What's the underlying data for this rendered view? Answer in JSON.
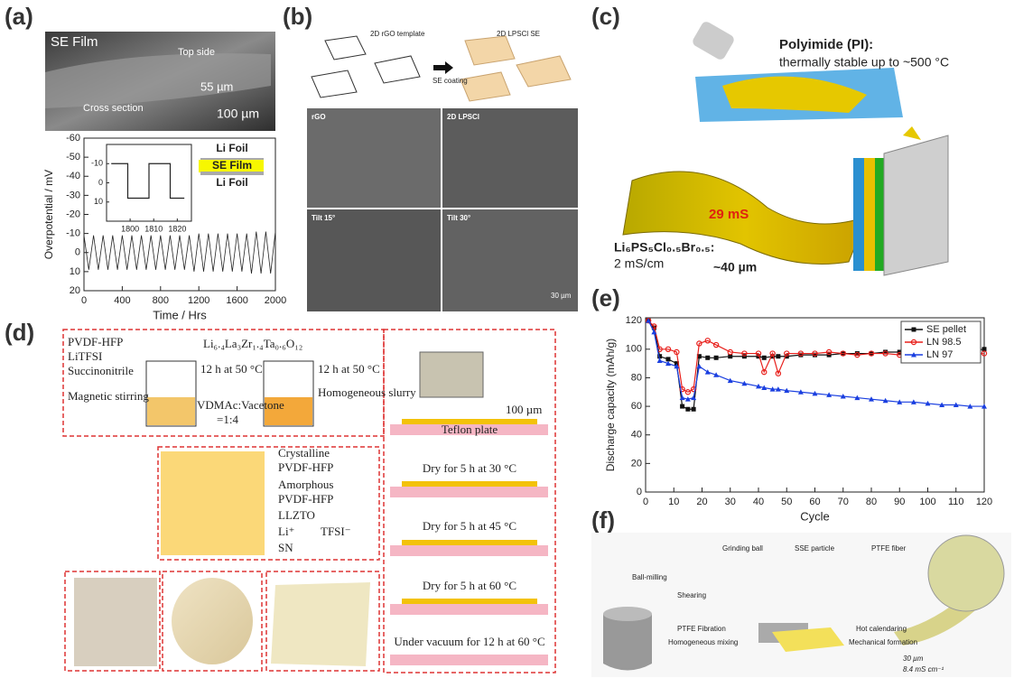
{
  "panels": {
    "labels": [
      "(a)",
      "(b)",
      "(c)",
      "(d)",
      "(e)",
      "(f)"
    ],
    "a": {
      "image_title": "SE Film",
      "top_side": "Top side",
      "thickness": "55 µm",
      "cross_section": "Cross section",
      "scale": "100 µm",
      "stack": [
        "Li Foil",
        "SE Film",
        "Li Foil"
      ]
    },
    "b": {
      "template": "2D rGO template",
      "se": "2D LPSCl SE",
      "coating": "SE coating",
      "tiles": [
        "rGO",
        "2D LPSCl",
        "Tilt 15°",
        "Tilt 30°"
      ],
      "scale": "30 µm"
    },
    "c": {
      "pi_title": "Polyimide (PI):",
      "pi_note": "thermally stable up to ~500 °C",
      "conductance": "29 mS",
      "formula": "Li₆PS₅Cl₀.₅Br₀.₅:",
      "conductivity": "2 mS/cm",
      "thickness": "~40 µm"
    },
    "d": {
      "reagents": [
        "PVDF-HFP",
        "LiTFSI",
        "Succinonitrile"
      ],
      "stirring": "Magnetic stirring",
      "llzto_formula": "Li₆.₄La₃Zr₁.₄Ta₀.₆O₁₂",
      "step1": "12 h at 50 °C",
      "step2": "12 h at 50 °C",
      "solvent": "VDMAc:Vacetone",
      "ratio": "=1:4",
      "slurry": "Homogeneous slurry",
      "thickness": "100 µm",
      "plate": "Teflon plate",
      "drying": [
        "Dry for 5 h at 30 °C",
        "Dry for 5 h at 45 °C",
        "Dry for 5 h at 60 °C",
        "Under vacuum for 12 h at 60 °C"
      ],
      "legend": [
        "Crystalline",
        "PVDF-HFP",
        "Amorphous",
        "PVDF-HFP",
        "LLZTO",
        "Li⁺",
        "TFSI⁻",
        "SN"
      ]
    },
    "f": {
      "legend": [
        "Grinding ball",
        "SSE particle",
        "PTFE fiber"
      ],
      "milling": "Ball-milling",
      "shearing": "Shearing",
      "step1": "PTFE Fibration",
      "step1b": "Homogeneous mixing",
      "step2": "Hot calendaring",
      "step2b": "Mechanical formation",
      "thickness": "30 µm",
      "conductivity": "8.4 mS cm⁻¹"
    }
  },
  "chart_data": [
    {
      "type": "line",
      "xlabel": "Time / Hrs",
      "ylabel": "Overpotential / mV",
      "x": [
        0,
        50,
        100,
        150,
        200,
        250,
        300,
        350,
        400,
        450,
        500,
        550,
        600,
        650,
        700,
        750,
        800,
        850,
        900,
        950,
        1000,
        1050,
        1100,
        1150,
        1200,
        1250,
        1300,
        1350,
        1400,
        1450,
        1500,
        1550,
        1600,
        1650,
        1700,
        1750,
        1800,
        1850,
        1900,
        1950,
        2000
      ],
      "series": [
        {
          "color": "#222",
          "values": [
            -9,
            9,
            -9,
            9,
            -9,
            9,
            -9,
            9,
            -9,
            9,
            -9,
            9,
            -9,
            9,
            -9,
            9,
            -9,
            9,
            -9,
            9,
            -9,
            9,
            -9,
            10,
            -10,
            10,
            -10,
            10,
            -10,
            10,
            -10,
            10,
            -10,
            10,
            -10,
            11,
            -11,
            11,
            -11,
            11,
            -11
          ]
        }
      ],
      "xlim": [
        0,
        2000
      ],
      "ylim": [
        20,
        -60
      ],
      "xticks": [
        0,
        400,
        800,
        1200,
        1600,
        2000
      ],
      "yticks": [
        -60,
        -50,
        -40,
        -30,
        -20,
        -10,
        0,
        10,
        20
      ]
    },
    {
      "type": "line",
      "x": [
        1792,
        1799,
        1799,
        1808,
        1808,
        1817,
        1817,
        1823
      ],
      "series": [
        {
          "color": "#222",
          "values": [
            -10,
            -10,
            8,
            8,
            -10,
            -10,
            8,
            8
          ]
        }
      ],
      "xlim": [
        1790,
        1826
      ],
      "ylim": [
        20,
        -20
      ],
      "xticks": [
        1800,
        1810,
        1820
      ],
      "yticks": [
        -10,
        0,
        10
      ]
    },
    {
      "type": "line",
      "xlabel": "Cycle",
      "ylabel": "Discharge capacity (mAh/g)",
      "legend": "upper right",
      "x": [
        1,
        3,
        5,
        8,
        11,
        13,
        15,
        17,
        19,
        22,
        25,
        30,
        35,
        40,
        42,
        45,
        47,
        50,
        55,
        60,
        65,
        70,
        75,
        80,
        85,
        90,
        95,
        100,
        105,
        110,
        115,
        120
      ],
      "series": [
        {
          "name": "SE pellet",
          "color": "#111",
          "marker": "square",
          "values": [
            120,
            115,
            95,
            93,
            90,
            60,
            58,
            58,
            95,
            94,
            94,
            95,
            95,
            95,
            94,
            95,
            95,
            95,
            96,
            96,
            96,
            97,
            97,
            97,
            98,
            98,
            98,
            98,
            99,
            99,
            99,
            100
          ]
        },
        {
          "name": "LN 98.5",
          "color": "#e8201c",
          "marker": "circle",
          "values": [
            120,
            116,
            100,
            100,
            98,
            72,
            70,
            72,
            104,
            106,
            103,
            98,
            97,
            97,
            84,
            97,
            83,
            97,
            97,
            97,
            98,
            97,
            96,
            97,
            97,
            96,
            97,
            95,
            96,
            96,
            96,
            97
          ]
        },
        {
          "name": "LN 97",
          "color": "#1a3fe0",
          "marker": "triangle",
          "values": [
            120,
            112,
            92,
            90,
            88,
            66,
            65,
            66,
            88,
            84,
            82,
            78,
            76,
            74,
            73,
            72,
            72,
            71,
            70,
            69,
            68,
            67,
            66,
            65,
            64,
            63,
            63,
            62,
            61,
            61,
            60,
            60
          ]
        }
      ],
      "xlim": [
        0,
        120
      ],
      "ylim": [
        0,
        122
      ],
      "xticks": [
        0,
        10,
        20,
        30,
        40,
        50,
        60,
        70,
        80,
        90,
        100,
        110,
        120
      ],
      "yticks": [
        0,
        20,
        40,
        60,
        80,
        100,
        120
      ]
    }
  ]
}
